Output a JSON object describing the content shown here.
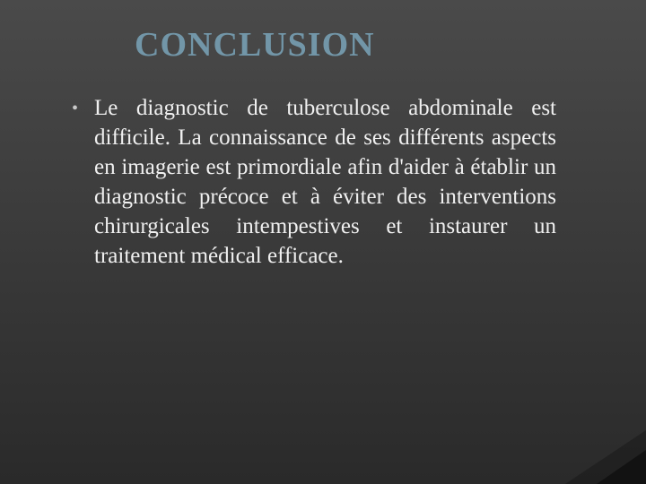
{
  "slide": {
    "type": "presentation-slide",
    "background": {
      "gradient_start": "#4a4a4a",
      "gradient_mid": "#3a3a3a",
      "gradient_end": "#2a2a2a"
    },
    "title": {
      "text": "CONCLUSION",
      "color": "#7296a8",
      "fontsize": 38,
      "font_weight": "bold",
      "font_family": "Times New Roman"
    },
    "bullet": {
      "glyph": "•",
      "color": "#c8c8c8",
      "fontsize": 20
    },
    "body": {
      "text": "Le diagnostic de tuberculose abdominale est difficile. La connaissance de ses différents aspects en imagerie est primordiale afin d'aider à établir un diagnostic précoce et à éviter des interventions chirurgicales intempestives et instaurer un traitement médical efficace.",
      "color": "#f0f0f0",
      "fontsize": 25,
      "line_height": 1.32,
      "text_align": "justify",
      "font_family": "Times New Roman"
    },
    "corner_accent": {
      "color_outer": "#1a1a1a",
      "color_inner": "#0f0f0f"
    }
  }
}
